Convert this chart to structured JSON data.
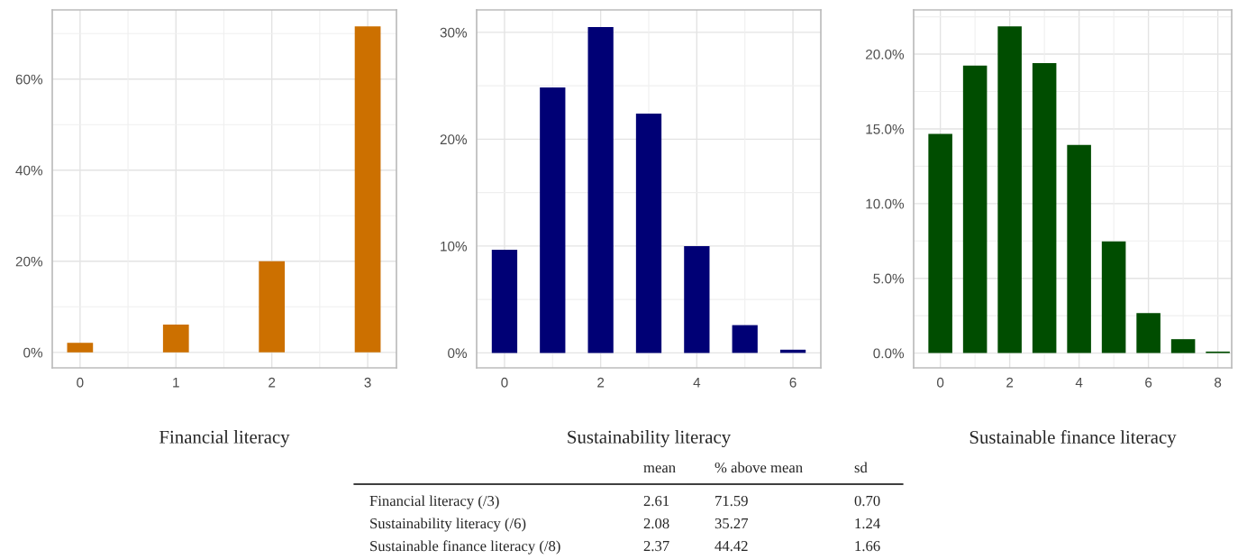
{
  "chart_data": [
    {
      "type": "bar",
      "xlabel": "Financial literacy",
      "x": [
        0,
        1,
        2,
        3
      ],
      "values": [
        2.1,
        6.1,
        20.0,
        71.6
      ],
      "color": "#cc7000",
      "xlim": [
        -0.29,
        3.3
      ],
      "xticks": [
        0,
        1,
        2,
        3
      ],
      "ylim": [
        -3.4,
        75.2
      ],
      "yticks": [
        {
          "value": 0,
          "label": "0%"
        },
        {
          "value": 20,
          "label": "20%"
        },
        {
          "value": 40,
          "label": "40%"
        },
        {
          "value": 60,
          "label": "60%"
        }
      ],
      "grid": true
    },
    {
      "type": "bar",
      "xlabel": "Sustainability literacy",
      "x": [
        0,
        1,
        2,
        3,
        4,
        5,
        6
      ],
      "values": [
        9.65,
        24.85,
        30.5,
        22.4,
        10.0,
        2.6,
        0.3
      ],
      "color": "#000075",
      "xlim": [
        -0.58,
        6.58
      ],
      "xticks": [
        0,
        2,
        4,
        6
      ],
      "ylim": [
        -1.4,
        32.1
      ],
      "yticks": [
        {
          "value": 0,
          "label": "0%"
        },
        {
          "value": 10,
          "label": "10%"
        },
        {
          "value": 20,
          "label": "20%"
        },
        {
          "value": 30,
          "label": "30%"
        }
      ],
      "grid": true
    },
    {
      "type": "bar",
      "xlabel": "Sustainable finance literacy",
      "x": [
        0,
        1,
        2,
        3,
        4,
        5,
        6,
        7,
        8
      ],
      "values": [
        14.66,
        19.24,
        21.86,
        19.4,
        13.92,
        7.47,
        2.68,
        0.93,
        0.1
      ],
      "color": "#004d00",
      "xlim": [
        -0.77,
        8.4
      ],
      "xticks": [
        0,
        2,
        4,
        6,
        8
      ],
      "ylim": [
        -0.99,
        22.96
      ],
      "yticks": [
        {
          "value": 0,
          "label": "0.0%"
        },
        {
          "value": 5,
          "label": "5.0%"
        },
        {
          "value": 10,
          "label": "10.0%"
        },
        {
          "value": 15,
          "label": "15.0%"
        },
        {
          "value": 20,
          "label": "20.0%"
        }
      ],
      "grid": true
    },
    {
      "type": "other",
      "annotations": [
        "mean",
        "% above mean",
        "sd",
        "Financial literacy (/3)",
        "2.61",
        "71.59",
        "0.70",
        "Sustainability literacy (/6)",
        "2.08",
        "35.27",
        "1.24",
        "Sustainable finance literacy (/8)",
        "2.37",
        "44.42",
        "1.66"
      ]
    }
  ]
}
